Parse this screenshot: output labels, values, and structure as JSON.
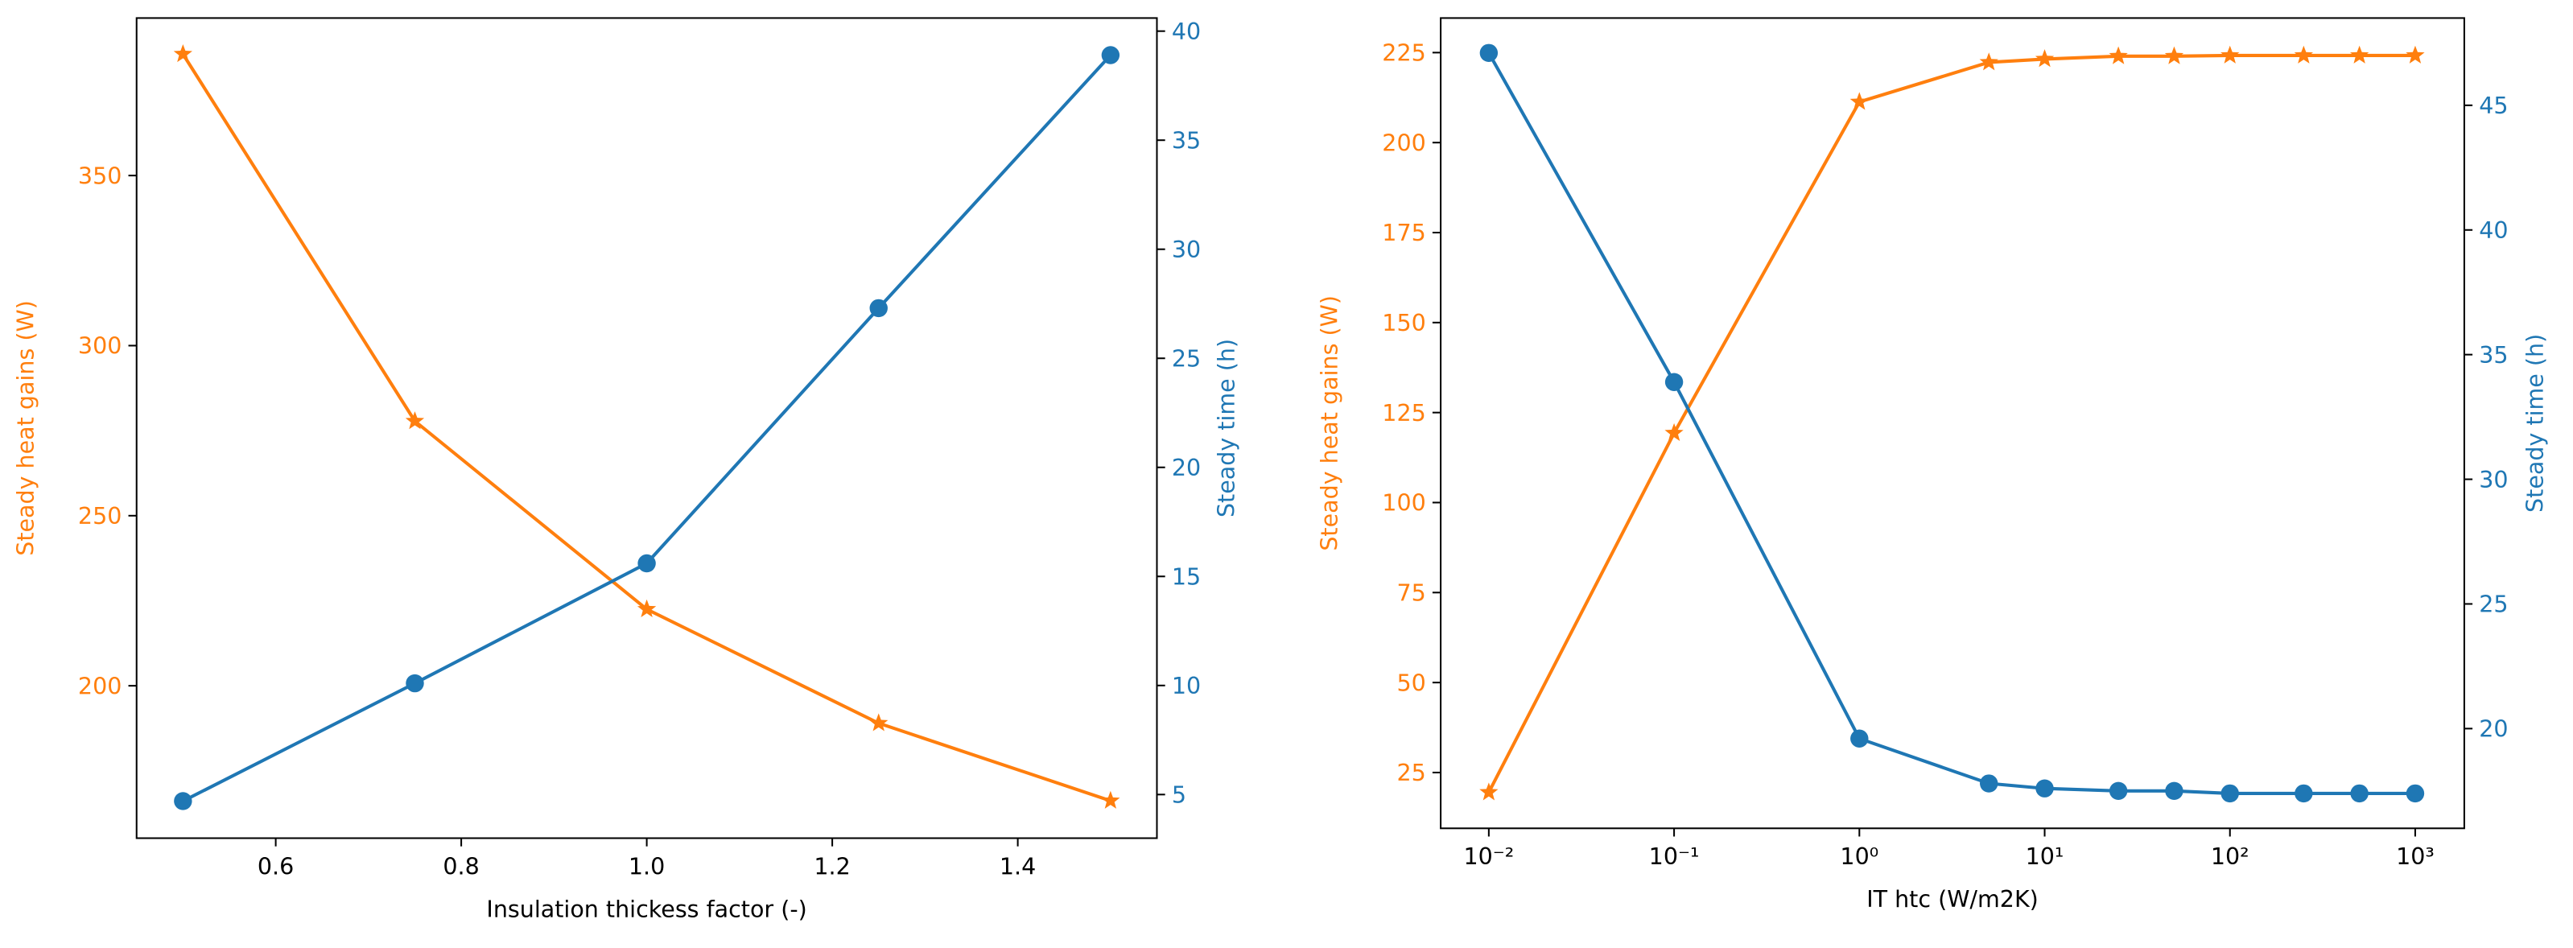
{
  "chart_data": [
    {
      "type": "line",
      "xlabel": "Insulation thickess factor (-)",
      "ylabel": "Steady heat gains (W)",
      "y2label": "Steady time (h)",
      "x": [
        0.5,
        0.75,
        1.0,
        1.25,
        1.5
      ],
      "series": [
        {
          "color": "#ff7f0e",
          "marker": "star",
          "values": [
            385.7,
            277.8,
            222.5,
            189,
            166.2
          ]
        },
        {
          "color": "#1f77b4",
          "marker": "circle",
          "axis": "y2",
          "values": [
            4.7,
            10.1,
            15.6,
            27.3,
            38.9
          ]
        }
      ],
      "xlim": [
        0.45,
        1.55
      ],
      "xticks": [
        0.6,
        0.8,
        {
          "value": 1,
          "label": "1.0"
        },
        1.2,
        1.4
      ],
      "ylim": [
        155.2,
        396.3
      ],
      "yticks": [
        200,
        250,
        300,
        350
      ],
      "y2lim": [
        3.0,
        40.6
      ],
      "y2ticks": [
        5,
        10,
        15,
        20,
        25,
        30,
        35,
        40
      ]
    },
    {
      "type": "line",
      "xlabel": "IT htc (W/m2K)",
      "ylabel": "Steady heat gains (W)",
      "y2label": "Steady time (h)",
      "xscale": "log",
      "x": [
        0.01,
        0.1,
        1,
        5,
        10,
        25,
        50,
        100,
        250,
        500,
        1000
      ],
      "series": [
        {
          "color": "#ff7f0e",
          "marker": "star",
          "values": [
            19.5,
            119.3,
            211.3,
            222.3,
            223.2,
            224,
            224,
            224.2,
            224.2,
            224.2,
            224.2
          ]
        },
        {
          "color": "#1f77b4",
          "marker": "circle",
          "axis": "y2",
          "values": [
            47.1,
            33.9,
            19.6,
            17.8,
            17.6,
            17.5,
            17.5,
            17.4,
            17.4,
            17.4,
            17.4
          ]
        }
      ],
      "xlim": [
        0.0055,
        1840
      ],
      "xticks": [
        {
          "value": 0.01,
          "label": "10⁻²"
        },
        {
          "value": 0.1,
          "label": "10⁻¹"
        },
        {
          "value": 1,
          "label": "10⁰"
        },
        {
          "value": 10,
          "label": "10¹"
        },
        {
          "value": 100,
          "label": "10²"
        },
        {
          "value": 1000,
          "label": "10³"
        }
      ],
      "ylim": [
        9.5,
        234.6
      ],
      "yticks": [
        25,
        50,
        75,
        100,
        125,
        150,
        175,
        200,
        225
      ],
      "y2lim": [
        16,
        48.5
      ],
      "y2ticks": [
        20,
        25,
        30,
        35,
        40,
        45
      ]
    }
  ]
}
